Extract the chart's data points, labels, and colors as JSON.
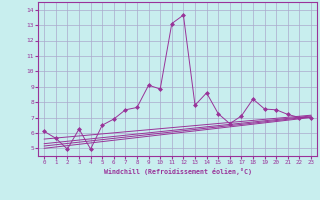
{
  "xlabel": "Windchill (Refroidissement éolien,°C)",
  "bg_color": "#c8eeee",
  "grid_color": "#aaaacc",
  "line_color": "#993399",
  "xlim": [
    -0.5,
    23.5
  ],
  "ylim": [
    4.5,
    14.5
  ],
  "xticks": [
    0,
    1,
    2,
    3,
    4,
    5,
    6,
    7,
    8,
    9,
    10,
    11,
    12,
    13,
    14,
    15,
    16,
    17,
    18,
    19,
    20,
    21,
    22,
    23
  ],
  "yticks": [
    5,
    6,
    7,
    8,
    9,
    10,
    11,
    12,
    13,
    14
  ],
  "line1_x": [
    0,
    1,
    2,
    3,
    4,
    5,
    6,
    7,
    8,
    9,
    10,
    11,
    12,
    13,
    14,
    15,
    16,
    17,
    18,
    19,
    20,
    21,
    22,
    23
  ],
  "line1_y": [
    6.1,
    5.65,
    4.95,
    6.25,
    4.95,
    6.5,
    6.9,
    7.5,
    7.65,
    9.1,
    8.85,
    13.1,
    13.65,
    7.8,
    8.6,
    7.25,
    6.6,
    7.1,
    8.2,
    7.55,
    7.5,
    7.2,
    7.0,
    7.0
  ],
  "line2_x": [
    0,
    23
  ],
  "line2_y": [
    5.0,
    7.0
  ],
  "line3_x": [
    0,
    23
  ],
  "line3_y": [
    5.15,
    7.05
  ],
  "line4_x": [
    0,
    23
  ],
  "line4_y": [
    5.3,
    7.1
  ],
  "line5_x": [
    0,
    23
  ],
  "line5_y": [
    5.6,
    7.15
  ]
}
